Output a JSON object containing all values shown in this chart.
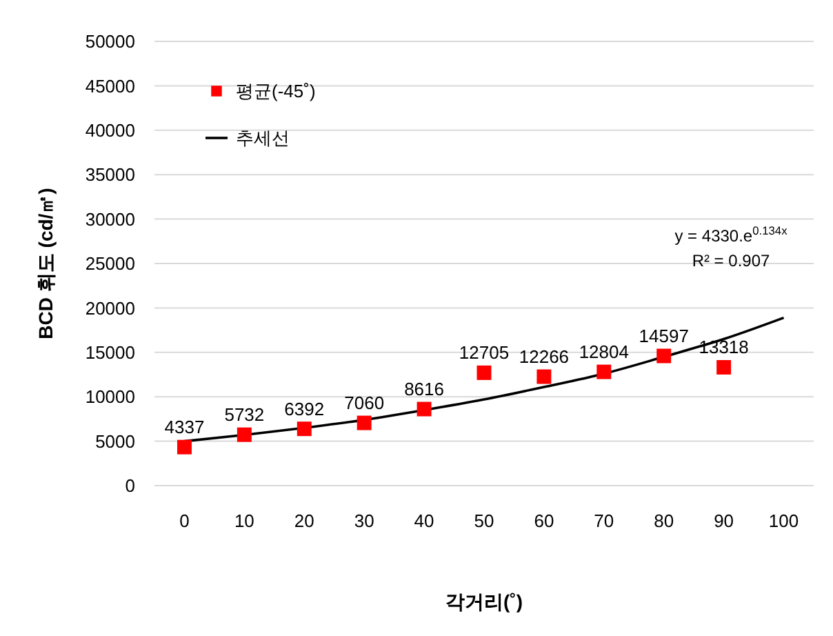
{
  "chart_data": {
    "type": "scatter",
    "xlabel": "각거리(˚)",
    "ylabel": "BCD 휘도 (cd/㎡)",
    "xlim": [
      -5,
      105
    ],
    "xticks": [
      0,
      10,
      20,
      30,
      40,
      50,
      60,
      70,
      80,
      90,
      100
    ],
    "ylim": [
      0,
      50000
    ],
    "yticks": [
      0,
      5000,
      10000,
      15000,
      20000,
      25000,
      30000,
      35000,
      40000,
      45000,
      50000
    ],
    "grid": "y",
    "legend": "top left",
    "annotations": [
      "y = 4330.e$^{0.134x}$",
      "R² = 0.907"
    ],
    "series": [
      {
        "name": "평균(-45˚)",
        "marker": "square",
        "color": "#ff0000",
        "x": [
          0,
          10,
          20,
          30,
          40,
          50,
          60,
          70,
          80,
          90
        ],
        "values": [
          4337,
          5732,
          6392,
          7060,
          8616,
          12705,
          12266,
          12804,
          14597,
          13318
        ],
        "value_labels": [
          "4337",
          "5732",
          "6392",
          "7060",
          "8616",
          "12705",
          "12266",
          "12804",
          "14597",
          "13318"
        ]
      },
      {
        "name": "추세선",
        "type": "line",
        "marker": "none",
        "color": "#000000",
        "x": [
          0,
          10,
          20,
          30,
          40,
          50,
          60,
          70,
          80,
          90,
          100
        ],
        "values": [
          5000,
          5700,
          6500,
          7400,
          8500,
          9700,
          11100,
          12600,
          14500,
          16500,
          18900
        ]
      }
    ]
  }
}
